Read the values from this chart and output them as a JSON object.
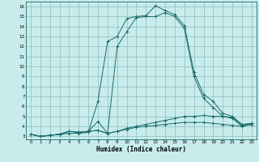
{
  "xlabel": "Humidex (Indice chaleur)",
  "bg_color": "#c8ecec",
  "grid_color": "#8cbcbc",
  "line_color": "#1a6b6b",
  "xlim": [
    -0.5,
    23.5
  ],
  "ylim": [
    2.7,
    16.5
  ],
  "xticks": [
    0,
    1,
    2,
    3,
    4,
    5,
    6,
    7,
    8,
    9,
    10,
    11,
    12,
    13,
    14,
    15,
    16,
    17,
    18,
    19,
    20,
    21,
    22,
    23
  ],
  "yticks": [
    3,
    4,
    5,
    6,
    7,
    8,
    9,
    10,
    11,
    12,
    13,
    14,
    15,
    16
  ],
  "x": [
    0,
    1,
    2,
    3,
    4,
    5,
    6,
    7,
    8,
    9,
    10,
    11,
    12,
    13,
    14,
    15,
    16,
    17,
    18,
    19,
    20,
    21,
    22,
    23
  ],
  "line1": [
    3.2,
    3.0,
    3.1,
    3.2,
    3.3,
    3.3,
    3.4,
    6.5,
    12.5,
    13.0,
    14.8,
    15.0,
    15.1,
    16.1,
    15.6,
    15.2,
    14.1,
    9.4,
    7.2,
    6.5,
    5.3,
    5.0,
    4.2,
    4.3
  ],
  "line2": [
    3.2,
    3.0,
    3.1,
    3.2,
    3.5,
    3.4,
    3.5,
    4.5,
    3.3,
    12.0,
    13.5,
    14.9,
    15.0,
    15.0,
    15.4,
    15.0,
    13.8,
    9.0,
    6.8,
    5.9,
    5.0,
    4.8,
    4.0,
    4.2
  ],
  "line3": [
    3.2,
    3.0,
    3.1,
    3.2,
    3.5,
    3.4,
    3.5,
    3.6,
    3.3,
    3.5,
    3.8,
    4.0,
    4.2,
    4.4,
    4.6,
    4.8,
    5.0,
    5.0,
    5.1,
    5.0,
    5.0,
    4.9,
    4.1,
    4.3
  ],
  "line4": [
    3.2,
    3.0,
    3.1,
    3.2,
    3.5,
    3.4,
    3.5,
    3.6,
    3.3,
    3.5,
    3.7,
    3.9,
    4.0,
    4.1,
    4.2,
    4.3,
    4.4,
    4.4,
    4.4,
    4.3,
    4.2,
    4.1,
    4.0,
    4.2
  ]
}
